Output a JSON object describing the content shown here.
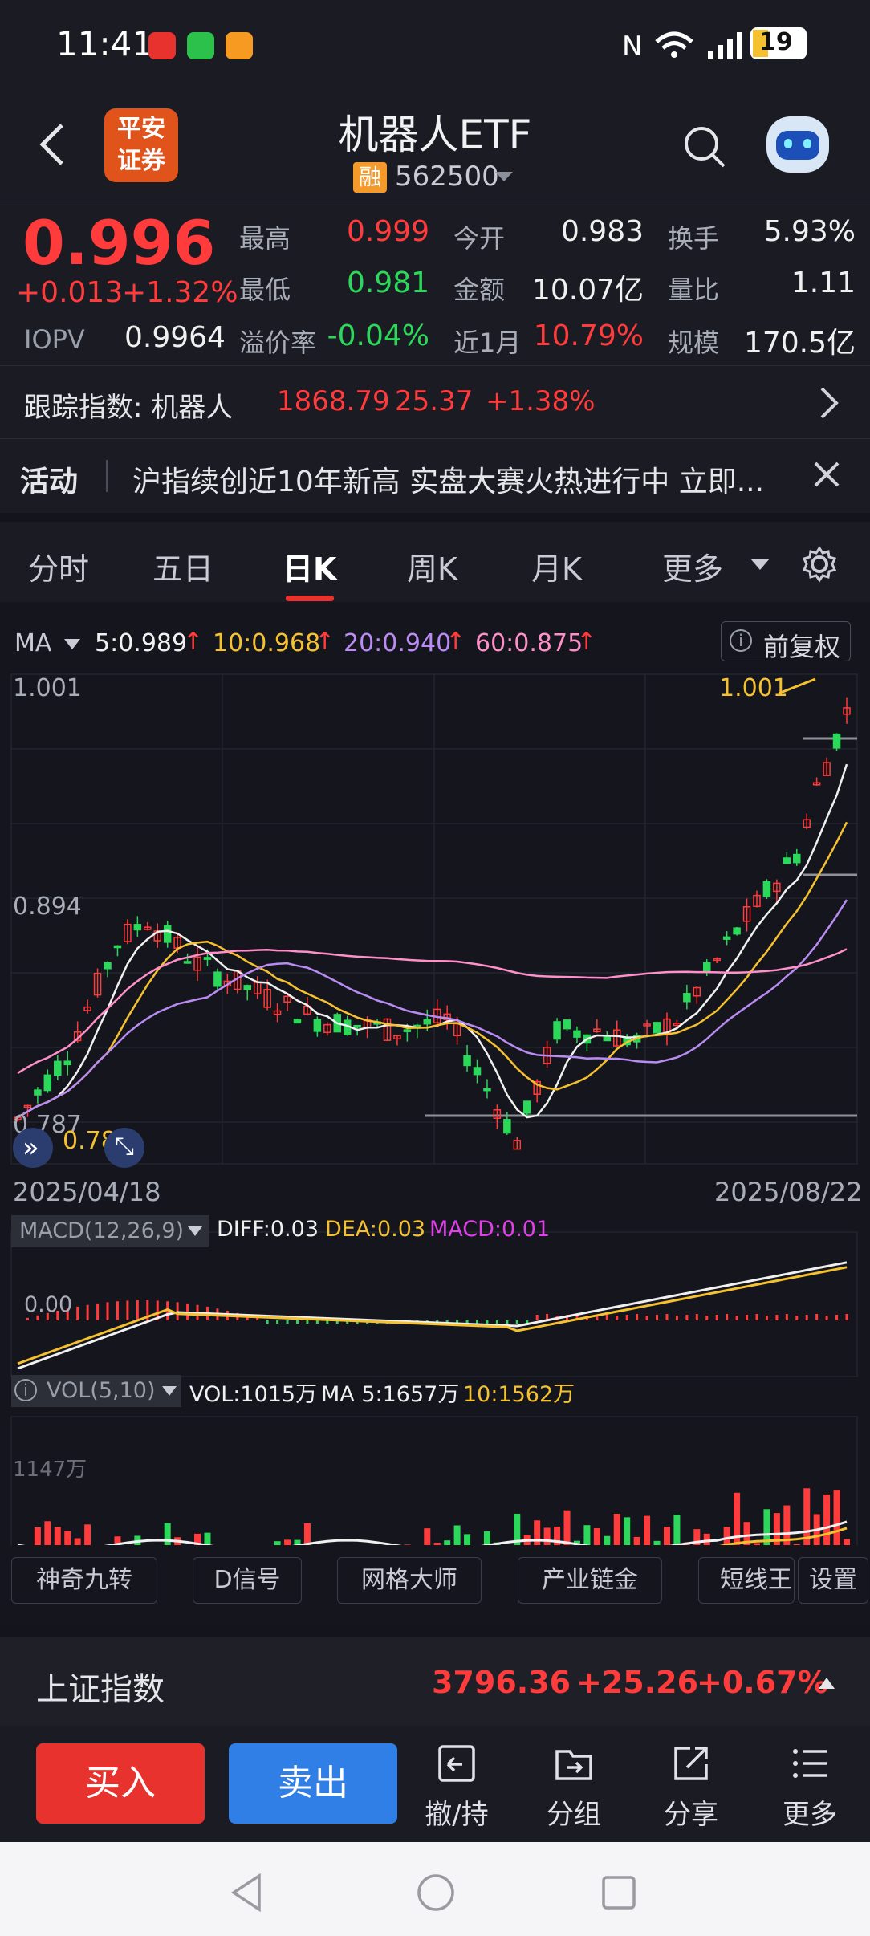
{
  "status_bar": {
    "time": "11:41",
    "battery": "19"
  },
  "header": {
    "broker_logo": "平安\n证券",
    "broker_line1": "平安",
    "broker_line2": "证券",
    "title": "机器人ETF",
    "margin_badge": "融",
    "code": "562500"
  },
  "quote": {
    "price": "0.996",
    "change": "+0.013",
    "change_pct": "+1.32%",
    "iopv_label": "IOPV",
    "iopv": "0.9964",
    "high_label": "最高",
    "high": "0.999",
    "low_label": "最低",
    "low": "0.981",
    "premium_label": "溢价率",
    "premium": "-0.04%",
    "open_label": "今开",
    "open": "0.983",
    "amount_label": "金额",
    "amount": "10.07亿",
    "month_label": "近1月",
    "month": "10.79%",
    "turnover_label": "换手",
    "turnover": "5.93%",
    "vol_ratio_label": "量比",
    "vol_ratio": "1.11",
    "scale_label": "规模",
    "scale": "170.5亿"
  },
  "tracking": {
    "label": "跟踪指数: 机器人",
    "value": "1868.79",
    "change": "25.37",
    "pct": "+1.38%"
  },
  "activity": {
    "label": "活动",
    "text": "沪指续创近10年新高 实盘大赛火热进行中 立即..."
  },
  "tabs": [
    "分时",
    "五日",
    "日K",
    "周K",
    "月K",
    "更多"
  ],
  "active_tab": "日K",
  "ma_legend": {
    "label": "MA",
    "ma5": "5:0.989",
    "ma10": "10:0.968",
    "ma20": "20:0.940",
    "ma60": "60:0.875",
    "arrow": "↑",
    "adjust": "前复权"
  },
  "price_axis": {
    "top": "1.001",
    "mid": "0.894",
    "bottom": "0.787",
    "max_marker": "1.001",
    "min_marker": "0.787"
  },
  "dates": {
    "start": "2025/04/18",
    "end": "2025/08/22"
  },
  "macd": {
    "label": "MACD(12,26,9)",
    "diff": "DIFF:0.03",
    "dea": "DEA:0.03",
    "macd": "MACD:0.01",
    "zero": "0.00"
  },
  "vol": {
    "label": "VOL(5,10)",
    "vol": "VOL:1015万",
    "ma5": "MA 5:1657万",
    "ma10": "10:1562万",
    "axis": "1147万"
  },
  "indicators": [
    "神奇九转",
    "D信号",
    "网格大师",
    "产业链金",
    "短线王",
    "设置"
  ],
  "index_bar": {
    "name": "上证指数",
    "value": "3796.36",
    "change": "+25.26",
    "pct": "+0.67%"
  },
  "trade": {
    "buy": "买入",
    "sell": "卖出",
    "items": [
      "撤/持",
      "分组",
      "分享",
      "更多"
    ]
  },
  "colors": {
    "up": "#ff3b3b",
    "down": "#2bd85a",
    "accent": "#e8322e",
    "sell": "#2f7fe6"
  }
}
